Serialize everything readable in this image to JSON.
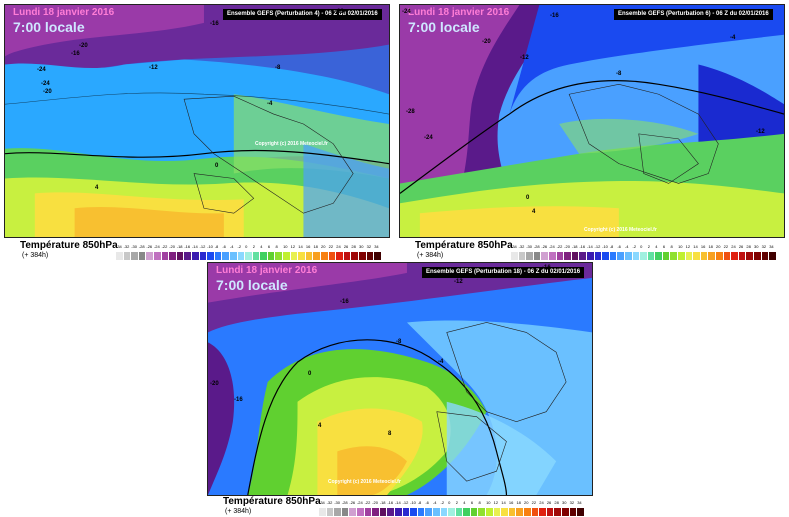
{
  "panels": [
    {
      "date": "Lundi 18 janvier 2016",
      "time": "7:00 locale",
      "banner": "Ensemble GEFS  (Perturbation 4)  -  06 Z du 02/01/2016",
      "copyright": "Copyright (c) 2016 Meteociel.fr",
      "title": "Température 850hPa",
      "lead": "(+ 384h)",
      "iso_labels": [
        "-16",
        "-20",
        "-24",
        "-12",
        "-8",
        "-4",
        "0",
        "4",
        "-16",
        "-24",
        "-20",
        "-28"
      ]
    },
    {
      "date": "Lundi 18 janvier 2016",
      "time": "7:00 locale",
      "banner": "Ensemble GEFS  (Perturbation 6)  -  06 Z du 02/01/2016",
      "copyright": "Copyright (c) 2016 Meteociel.fr",
      "title": "Température 850hPa",
      "lead": "(+ 384h)",
      "iso_labels": [
        "-24",
        "-16",
        "-20",
        "-12",
        "-8",
        "-4",
        "0",
        "4",
        "-12",
        "-24",
        "-28"
      ]
    },
    {
      "date": "Lundi 18 janvier 2016",
      "time": "7:00 locale",
      "banner": "Ensemble GEFS  (Perturbation 18)  -  06 Z du 02/01/2016",
      "copyright": "Copyright (c) 2016 Meteociel.fr",
      "title": "Température 850hPa",
      "lead": "(+ 384h)",
      "iso_labels": [
        "-16",
        "-12",
        "-16",
        "-20",
        "-8",
        "-4",
        "0",
        "4",
        "8",
        "-16"
      ]
    }
  ],
  "scale_labels": [
    "-34",
    "-32",
    "-30",
    "-28",
    "-26",
    "-24",
    "-22",
    "-20",
    "-18",
    "-16",
    "-14",
    "-12",
    "-10",
    "-8",
    "-6",
    "-4",
    "-2",
    "0",
    "2",
    "4",
    "6",
    "8",
    "10",
    "12",
    "14",
    "16",
    "18",
    "20",
    "22",
    "24",
    "26",
    "28",
    "30",
    "32",
    "34"
  ],
  "scale_colors": [
    "#e8e8e8",
    "#c8c8c8",
    "#a8a8a8",
    "#888888",
    "#d0a0d0",
    "#c070c0",
    "#a040a0",
    "#802080",
    "#601060",
    "#5a1a8a",
    "#3a1ab0",
    "#2a2ad0",
    "#1a4af0",
    "#2a7aff",
    "#4aa0ff",
    "#6ac0ff",
    "#8ad8ff",
    "#a0f0e0",
    "#60e0a0",
    "#40d060",
    "#60d030",
    "#90e030",
    "#c0f030",
    "#e8f050",
    "#f8e040",
    "#f8c030",
    "#f8a020",
    "#f88010",
    "#f05010",
    "#e02010",
    "#c01010",
    "#a00808",
    "#800000",
    "#600000",
    "#400000"
  ]
}
